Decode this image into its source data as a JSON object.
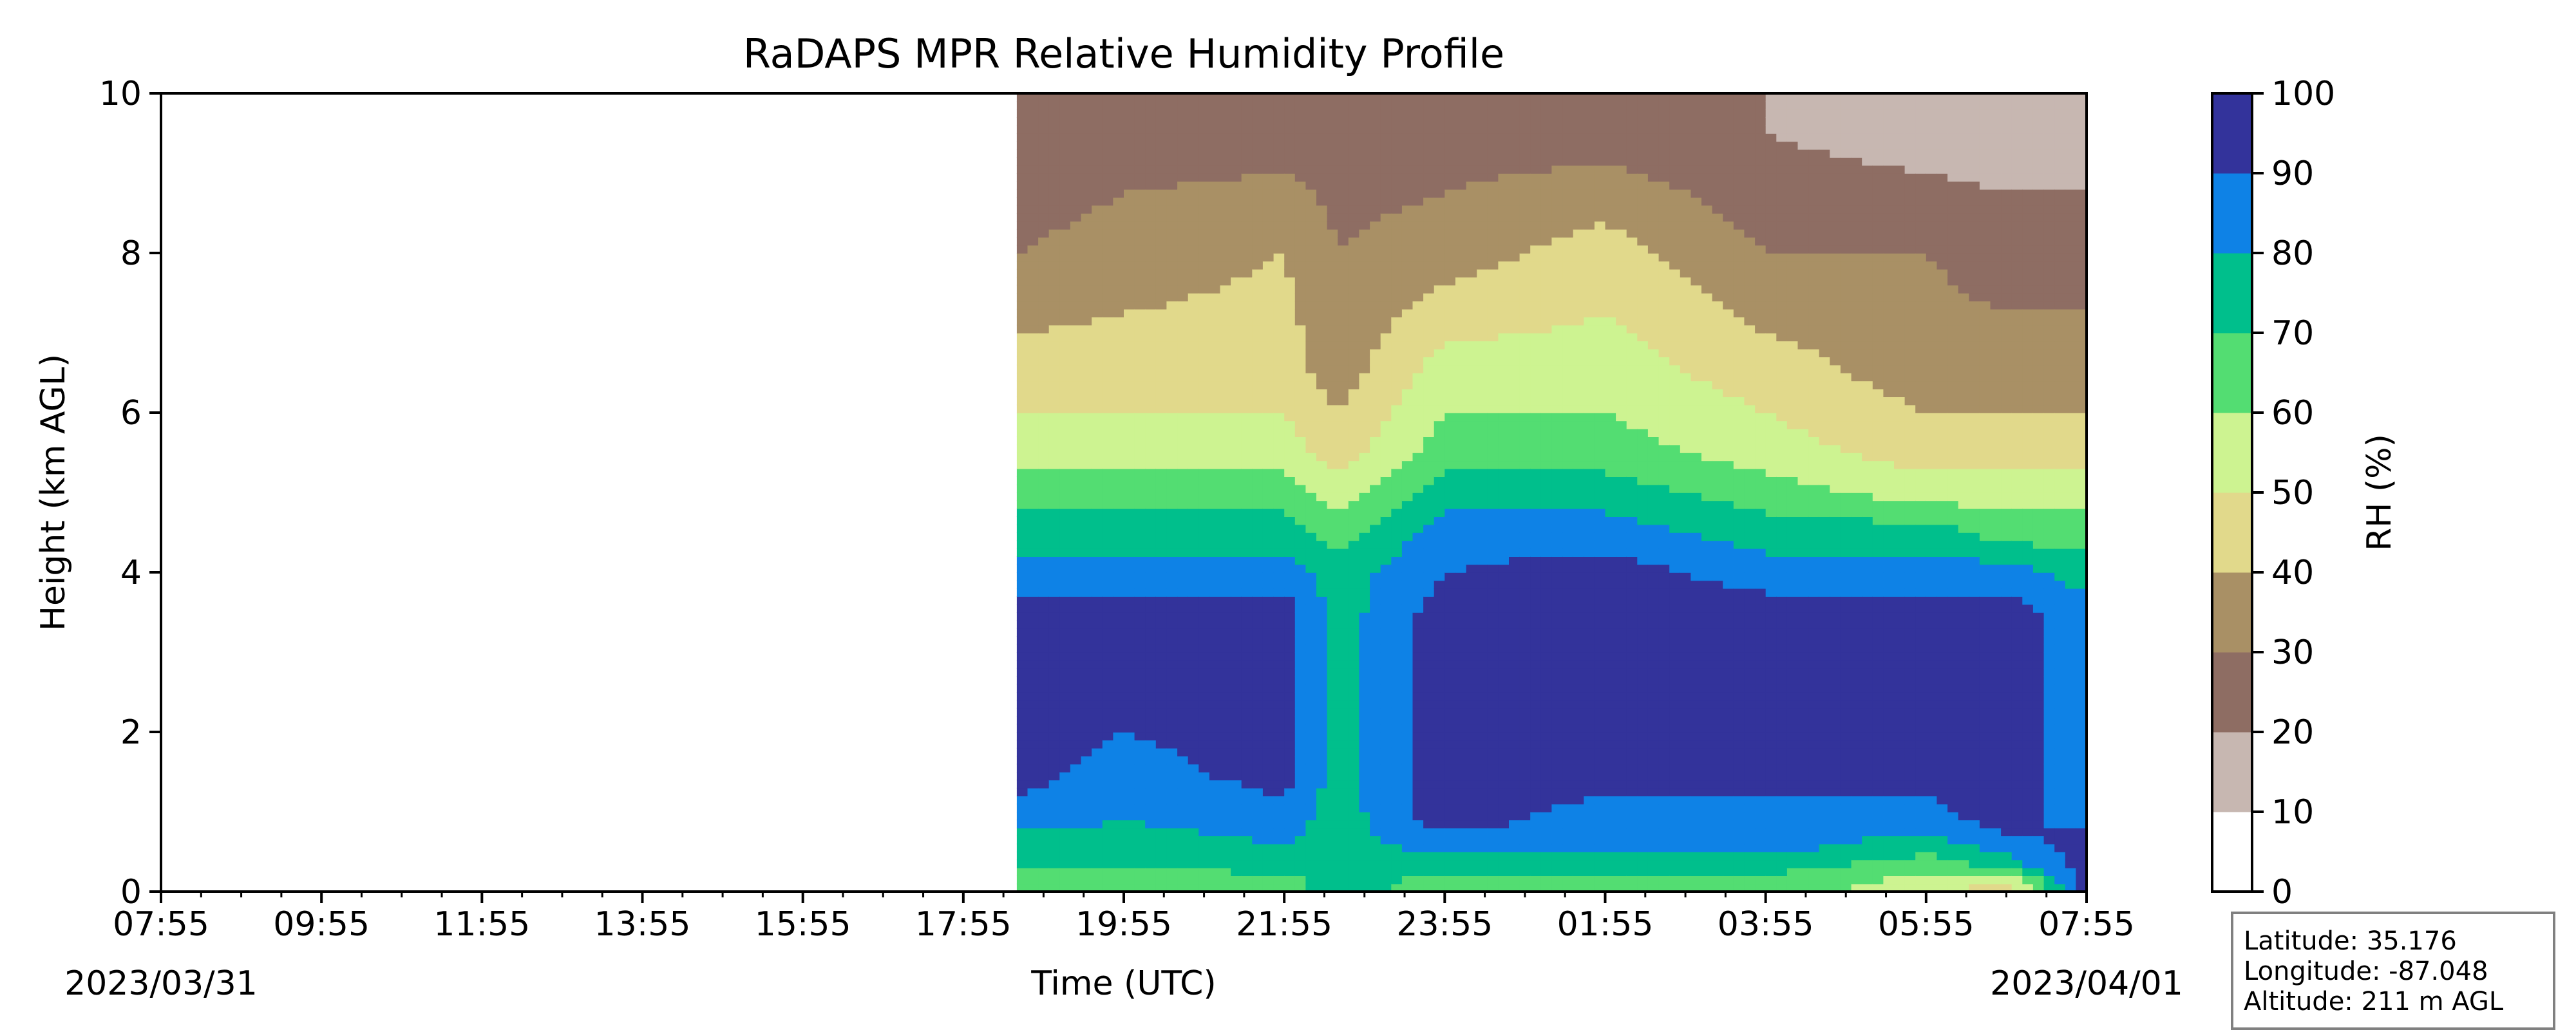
{
  "chart_data": {
    "type": "heatmap",
    "title": "RaDAPS MPR Relative Humidity Profile",
    "xlabel": "Time (UTC)",
    "ylabel": "Height (km AGL)",
    "x_tick_labels": [
      "07:55",
      "09:55",
      "11:55",
      "13:55",
      "15:55",
      "17:55",
      "19:55",
      "21:55",
      "23:55",
      "01:55",
      "03:55",
      "05:55",
      "07:55"
    ],
    "start_date": "2023/03/31",
    "end_date": "2023/04/01",
    "xlim": [
      "2023/03/31 07:55",
      "2023/04/01 07:55"
    ],
    "ylim": [
      0,
      10
    ],
    "y_ticks": [
      0,
      2,
      4,
      6,
      8,
      10
    ],
    "data_start": "2023/03/31 18:35",
    "colorbar": {
      "label": "RH (%)",
      "levels": [
        0,
        10,
        20,
        30,
        40,
        50,
        60,
        70,
        80,
        90,
        100
      ],
      "colors": [
        "#ffffff",
        "#c7b7b1",
        "#8e6d63",
        "#a99065",
        "#e1d98b",
        "#cdf391",
        "#53dd72",
        "#00bf8c",
        "#0e82e6",
        "#33339b"
      ]
    },
    "profile_heights_km": [
      0.1,
      0.35,
      0.6,
      0.9,
      1.5,
      2.5,
      3.5,
      4.0,
      4.5,
      5.0,
      5.5,
      6.5,
      8.0,
      9.5
    ],
    "profile_times": [
      "18:35",
      "19:55",
      "21:55",
      "22:35",
      "23:55",
      "01:55",
      "03:55",
      "05:55",
      "06:55",
      "07:55"
    ],
    "rh_profiles": [
      [
        65,
        70,
        75,
        85,
        95,
        95,
        95,
        85,
        75,
        65,
        55,
        45,
        30,
        20
      ],
      [
        65,
        70,
        75,
        80,
        85,
        95,
        95,
        85,
        75,
        65,
        55,
        45,
        35,
        25
      ],
      [
        65,
        75,
        80,
        85,
        95,
        95,
        95,
        85,
        75,
        65,
        55,
        45,
        40,
        25
      ],
      [
        75,
        75,
        75,
        75,
        75,
        75,
        75,
        75,
        65,
        55,
        45,
        35,
        30,
        25
      ],
      [
        65,
        75,
        85,
        95,
        95,
        95,
        95,
        90,
        85,
        75,
        65,
        55,
        35,
        25
      ],
      [
        65,
        75,
        85,
        85,
        95,
        95,
        95,
        95,
        85,
        75,
        65,
        55,
        45,
        25
      ],
      [
        65,
        75,
        85,
        85,
        95,
        95,
        95,
        85,
        75,
        65,
        55,
        45,
        30,
        20
      ],
      [
        55,
        65,
        75,
        85,
        95,
        95,
        95,
        85,
        75,
        55,
        45,
        35,
        30,
        15
      ],
      [
        45,
        75,
        85,
        95,
        95,
        95,
        95,
        85,
        65,
        55,
        45,
        35,
        25,
        15
      ],
      [
        95,
        95,
        95,
        85,
        85,
        85,
        85,
        75,
        65,
        55,
        45,
        35,
        25,
        15
      ]
    ]
  },
  "info_box": {
    "latitude": "Latitude: 35.176",
    "longitude": "Longitude: -87.048",
    "altitude": "Altitude: 211 m AGL"
  }
}
